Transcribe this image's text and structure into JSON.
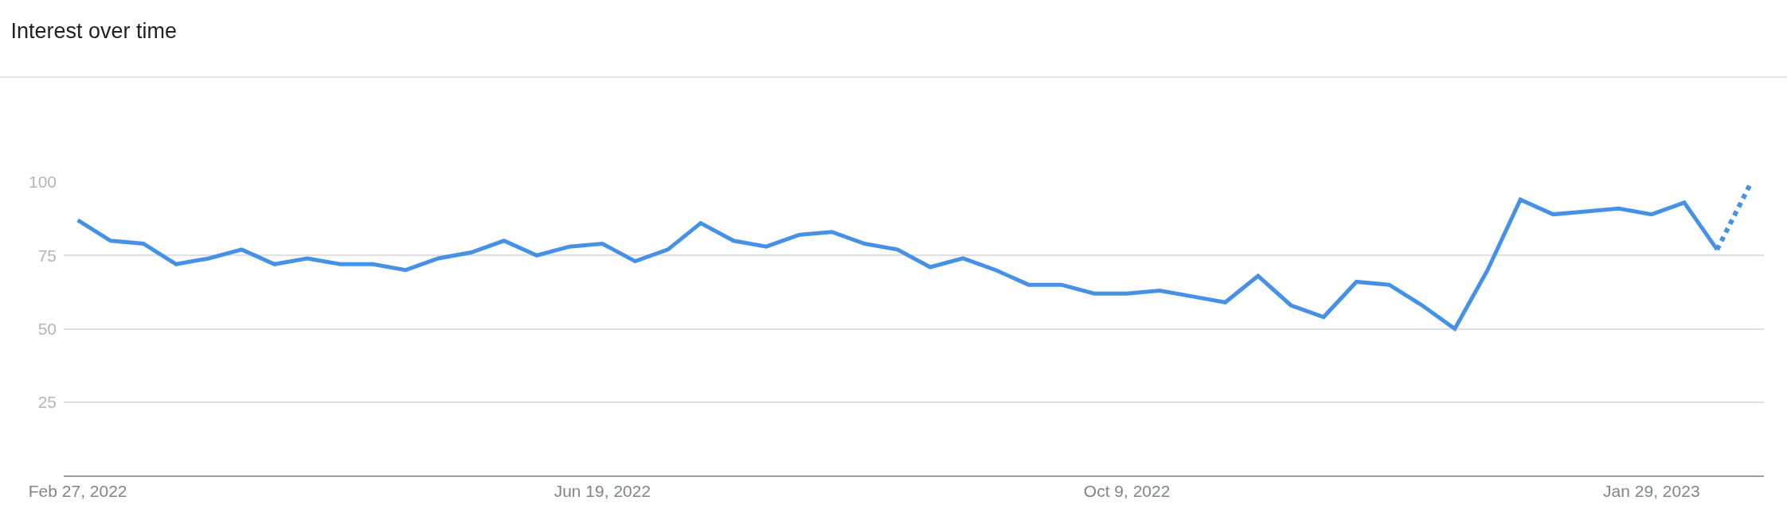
{
  "chart_data": {
    "type": "line",
    "title": "Interest over time",
    "series": [
      {
        "color": "#4591e6",
        "line_style": "solid",
        "x": [
          "2022-02-27",
          "2022-03-06",
          "2022-03-13",
          "2022-03-20",
          "2022-03-27",
          "2022-04-03",
          "2022-04-10",
          "2022-04-17",
          "2022-04-24",
          "2022-05-01",
          "2022-05-08",
          "2022-05-15",
          "2022-05-22",
          "2022-05-29",
          "2022-06-05",
          "2022-06-12",
          "2022-06-19",
          "2022-06-26",
          "2022-07-03",
          "2022-07-10",
          "2022-07-17",
          "2022-07-24",
          "2022-07-31",
          "2022-08-07",
          "2022-08-14",
          "2022-08-21",
          "2022-08-28",
          "2022-09-04",
          "2022-09-11",
          "2022-09-18",
          "2022-09-25",
          "2022-10-02",
          "2022-10-09",
          "2022-10-16",
          "2022-10-23",
          "2022-10-30",
          "2022-11-06",
          "2022-11-13",
          "2022-11-20",
          "2022-11-27",
          "2022-12-04",
          "2022-12-11",
          "2022-12-18",
          "2022-12-25",
          "2023-01-01",
          "2023-01-08",
          "2023-01-15",
          "2023-01-22",
          "2023-01-29",
          "2023-02-05",
          "2023-02-12"
        ],
        "values": [
          87,
          80,
          79,
          72,
          74,
          77,
          72,
          74,
          72,
          72,
          70,
          74,
          76,
          80,
          75,
          78,
          79,
          73,
          77,
          86,
          80,
          78,
          82,
          83,
          79,
          77,
          71,
          74,
          70,
          65,
          65,
          62,
          62,
          63,
          61,
          59,
          68,
          58,
          54,
          66,
          65,
          58,
          50,
          70,
          94,
          89,
          90,
          91,
          89,
          93,
          77
        ]
      },
      {
        "color": "#4591e6",
        "line_style": "dotted",
        "x": [
          "2023-02-12",
          "2023-02-19"
        ],
        "values": [
          77,
          99
        ]
      }
    ],
    "xlim": [
      "2022-02-24",
      "2023-02-22"
    ],
    "xticks": [
      {
        "value": "2022-02-27",
        "label": "Feb 27, 2022"
      },
      {
        "value": "2022-06-19",
        "label": "Jun 19, 2022"
      },
      {
        "value": "2022-10-09",
        "label": "Oct 9, 2022"
      },
      {
        "value": "2023-01-29",
        "label": "Jan 29, 2023"
      }
    ],
    "ylim": [
      0,
      100
    ],
    "yticks": [
      25,
      50,
      75,
      100
    ],
    "grid": "y"
  }
}
